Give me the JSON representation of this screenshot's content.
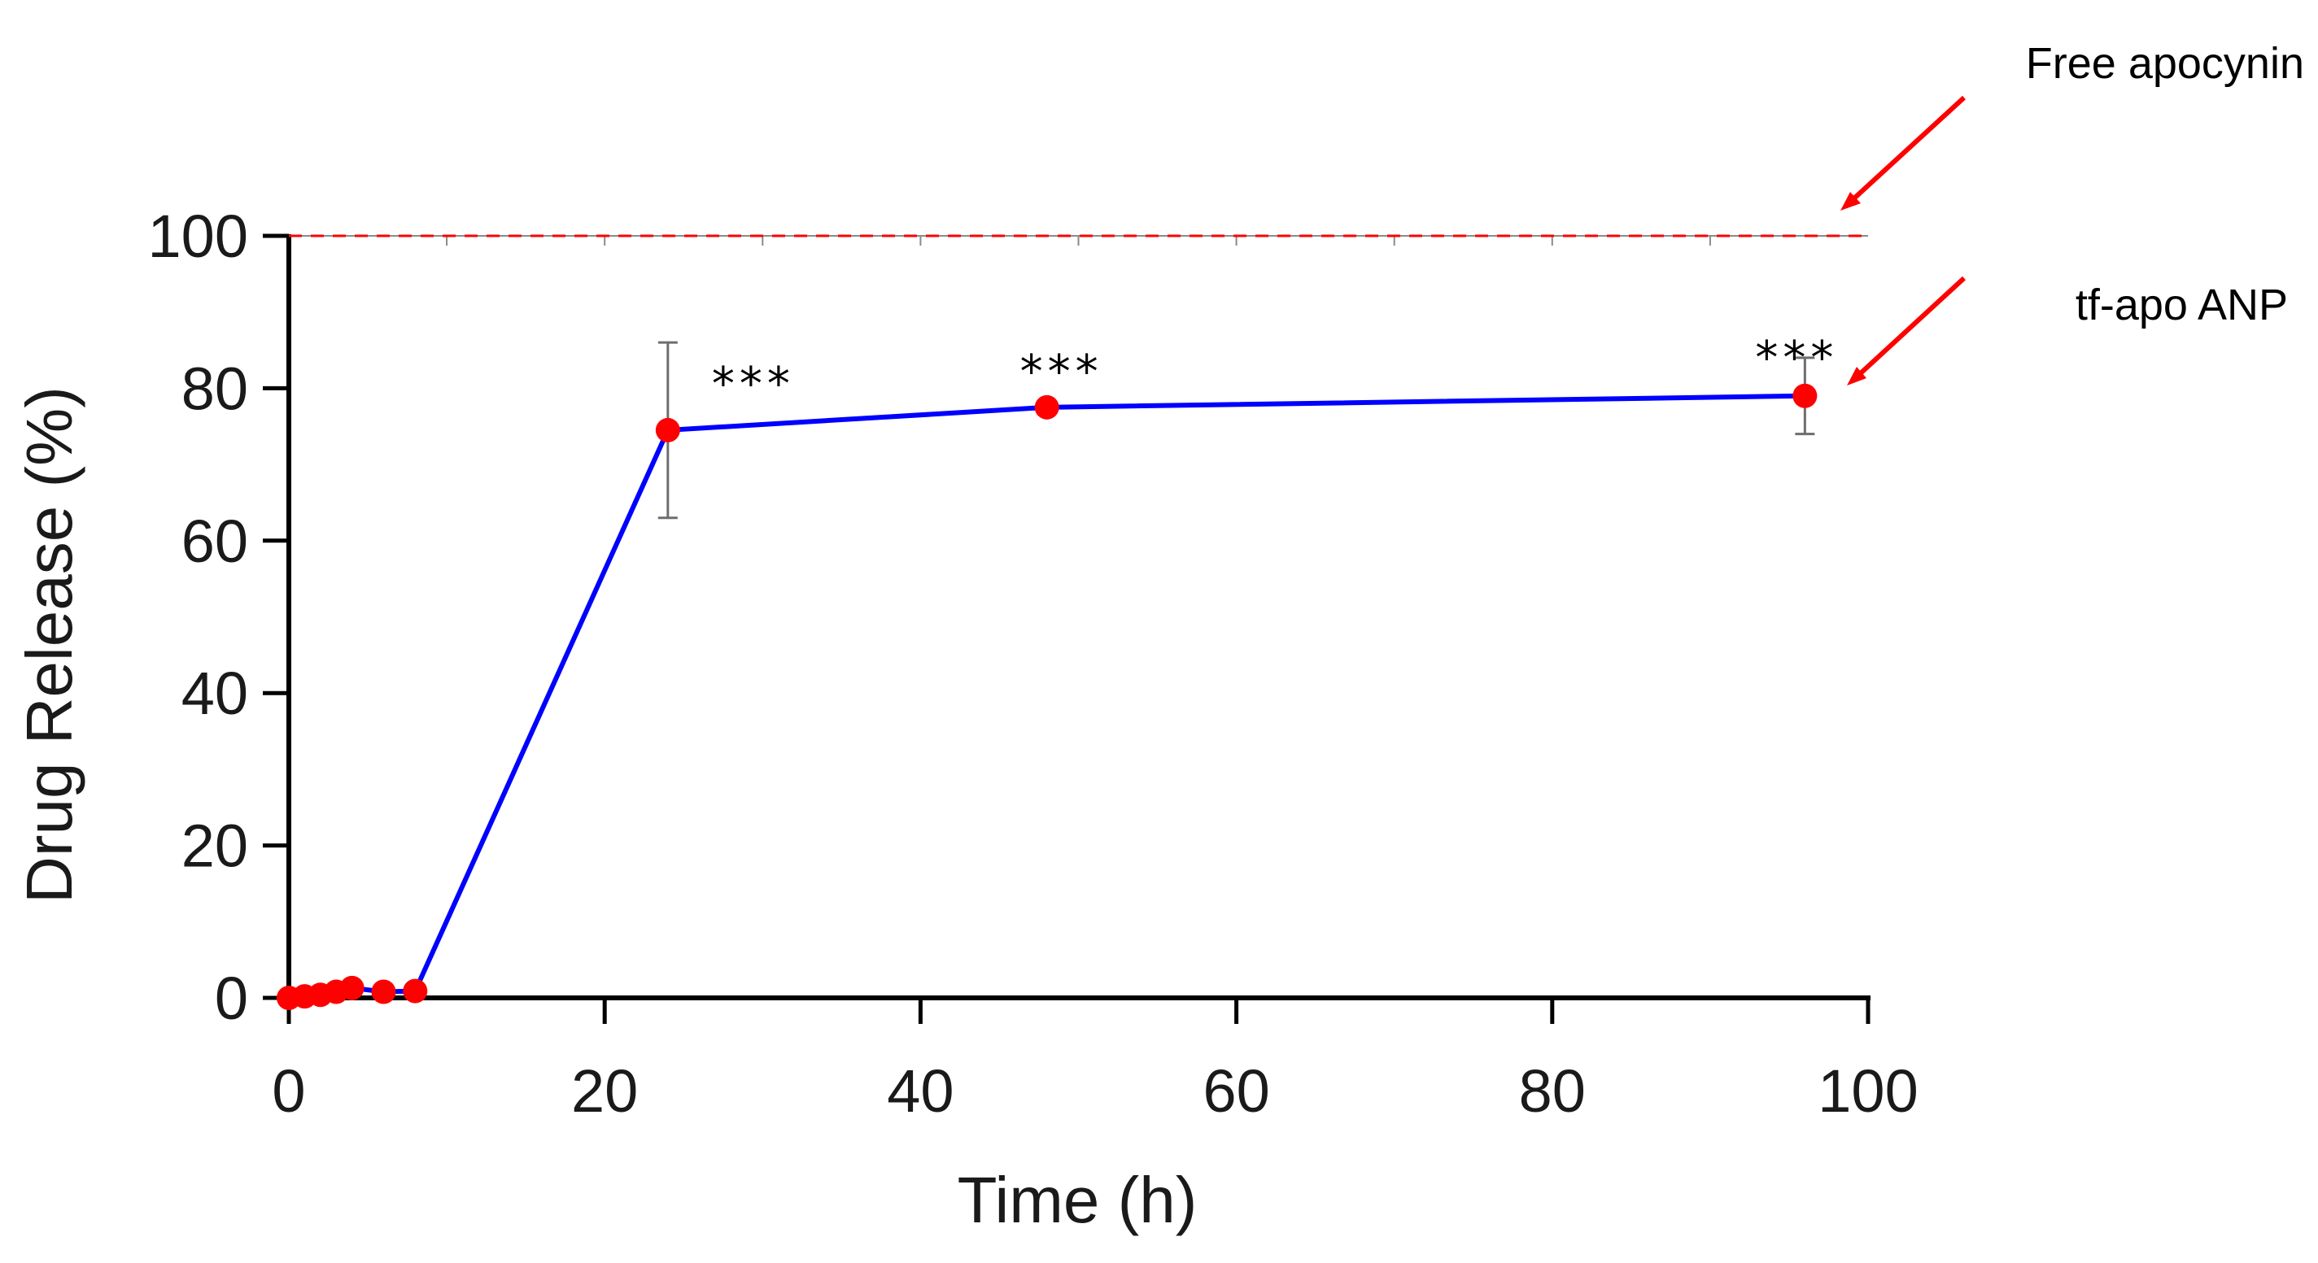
{
  "chart_data": {
    "type": "line",
    "title": "",
    "xlabel": "Time (h)",
    "ylabel": "Drug Release (%)",
    "xlim": [
      0,
      100
    ],
    "ylim": [
      0,
      100
    ],
    "xticks": [
      0,
      20,
      40,
      60,
      80,
      100
    ],
    "yticks": [
      0,
      20,
      40,
      60,
      80,
      100
    ],
    "grid": false,
    "series": [
      {
        "name": "tf-apo ANP",
        "color": "#0000ff",
        "marker_color": "#ff0000",
        "x": [
          0,
          1,
          2,
          3,
          4,
          6,
          8,
          24,
          48,
          96
        ],
        "y": [
          0,
          0.2,
          0.4,
          0.8,
          1.3,
          0.8,
          0.9,
          74.5,
          77.5,
          79
        ],
        "error": [
          0,
          0,
          0,
          0,
          0,
          0,
          0,
          11.5,
          0,
          5
        ]
      },
      {
        "name": "Free apocynin",
        "color": "#ff0000",
        "style": "dashed",
        "x": [
          0,
          100
        ],
        "y": [
          100,
          100
        ]
      }
    ],
    "annotations": [
      {
        "text": "***",
        "x": 24,
        "y": 74.5,
        "kind": "significance"
      },
      {
        "text": "***",
        "x": 48,
        "y": 77.5,
        "kind": "significance"
      },
      {
        "text": "***",
        "x": 96,
        "y": 79,
        "kind": "significance"
      }
    ],
    "labels": {
      "free_apocynin": "Free apocynin",
      "tf_apo_anp": "tf-apo ANP"
    },
    "arrow_color": "#ff0000"
  }
}
